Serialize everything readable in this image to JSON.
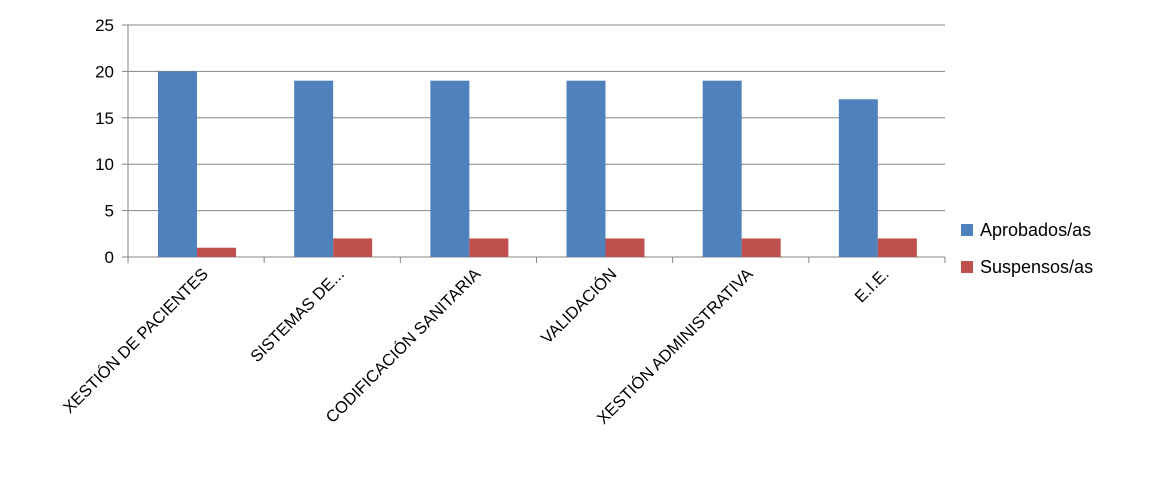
{
  "chart_data": {
    "type": "bar",
    "title": "",
    "xlabel": "",
    "ylabel": "",
    "categories": [
      "XESTIÓN DE PACIENTES",
      "SISTEMAS DE...",
      "CODIFICACIÓN SANITARIA",
      "VALIDACIÓN",
      "XESTIÓN ADMINISTRATIVA",
      "E.I.E."
    ],
    "series": [
      {
        "name": "Aprobados/as",
        "color": "#4F81BD",
        "values": [
          20,
          19,
          19,
          19,
          19,
          17
        ]
      },
      {
        "name": "Suspensos/as",
        "color": "#C0504D",
        "values": [
          1,
          2,
          2,
          2,
          2,
          2
        ]
      }
    ],
    "ylim": [
      0,
      25
    ],
    "yticks": [
      0,
      5,
      10,
      15,
      20,
      25
    ],
    "grid": true,
    "legend_position": "right"
  }
}
